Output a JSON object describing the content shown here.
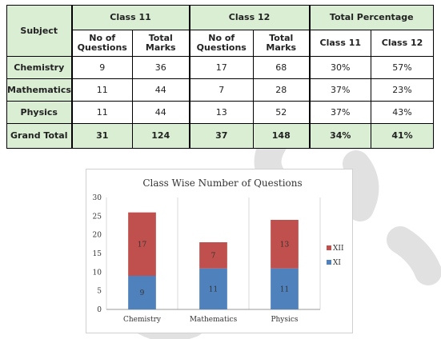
{
  "table": {
    "header": {
      "subject": "Subject",
      "class11": "Class 11",
      "class12": "Class 12",
      "total_percentage": "Total Percentage",
      "no_of_questions": "No of Questions",
      "total_marks": "Total Marks",
      "pct_class11": "Class 11",
      "pct_class12": "Class 12"
    },
    "rows": [
      {
        "subject": "Chemistry",
        "q11": "9",
        "m11": "36",
        "q12": "17",
        "m12": "68",
        "p11": "30%",
        "p12": "57%"
      },
      {
        "subject": "Mathematics",
        "q11": "11",
        "m11": "44",
        "q12": "7",
        "m12": "28",
        "p11": "37%",
        "p12": "23%"
      },
      {
        "subject": "Physics",
        "q11": "11",
        "m11": "44",
        "q12": "13",
        "m12": "52",
        "p11": "37%",
        "p12": "43%"
      }
    ],
    "total": {
      "label": "Grand Total",
      "q11": "31",
      "m11": "124",
      "q12": "37",
      "m12": "148",
      "p11": "34%",
      "p12": "41%"
    }
  },
  "chart_data": {
    "type": "bar",
    "stacked": true,
    "title": "Class Wise Number of Questions",
    "categories": [
      "Chemistry",
      "Mathematics",
      "Physics"
    ],
    "series": [
      {
        "name": "XI",
        "values": [
          9,
          11,
          11
        ],
        "color": "#4f81bd"
      },
      {
        "name": "XII",
        "values": [
          17,
          7,
          13
        ],
        "color": "#c0504d"
      }
    ],
    "ylim": [
      0,
      30
    ],
    "yticks": [
      0,
      5,
      10,
      15,
      20,
      25,
      30
    ],
    "grid": "vertical-category-separators",
    "legend": "right"
  }
}
